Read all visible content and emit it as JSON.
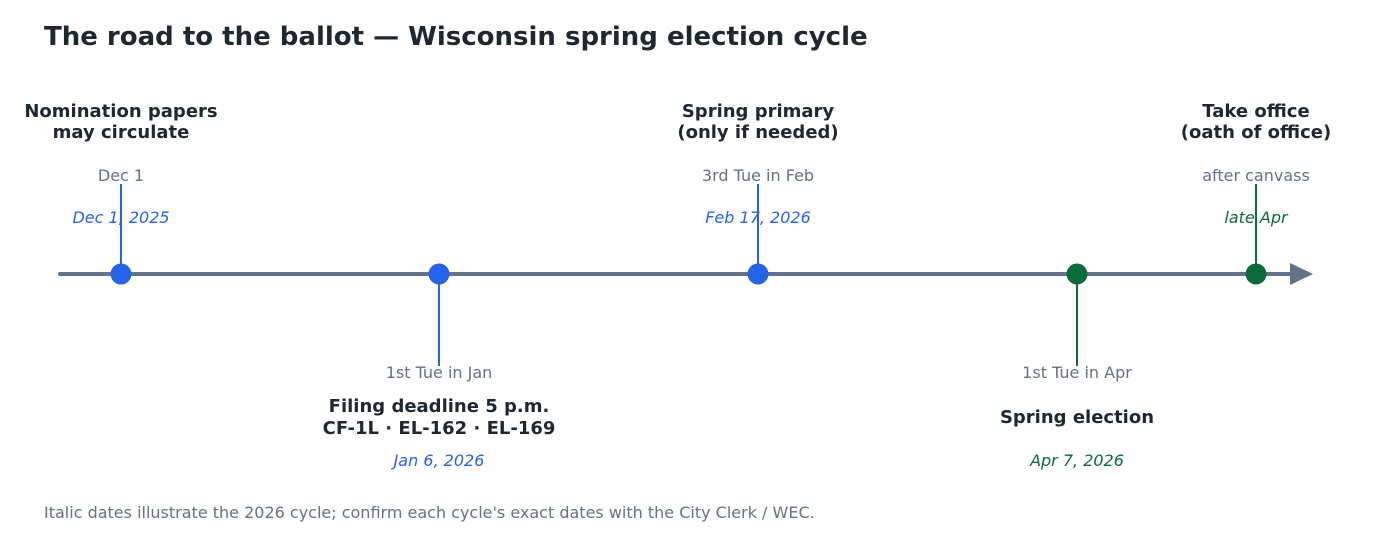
{
  "title": "The road to the ballot — Wisconsin spring election cycle",
  "footnote": "Italic dates illustrate the 2026 cycle; confirm each cycle's exact dates with the City Clerk / WEC.",
  "colors": {
    "blue": "#2563eb",
    "green": "#0b6b3a",
    "axis": "#64718a",
    "label": "#1f2733",
    "muted": "#64718a"
  },
  "milestones": [
    {
      "id": "nomination",
      "position": "above",
      "color": "blue",
      "label_lines": [
        "Nomination papers",
        "may circulate"
      ],
      "rule": "Dec 1",
      "date": "Dec 1, 2025"
    },
    {
      "id": "filing",
      "position": "below",
      "color": "blue",
      "label_lines": [
        "Filing deadline 5 p.m.",
        "CF-1L · EL-162 · EL-169"
      ],
      "rule": "1st Tue in Jan",
      "date": "Jan 6, 2026"
    },
    {
      "id": "primary",
      "position": "above",
      "color": "blue",
      "label_lines": [
        "Spring primary",
        "(only if needed)"
      ],
      "rule": "3rd Tue in Feb",
      "date": "Feb 17, 2026"
    },
    {
      "id": "election",
      "position": "below",
      "color": "green",
      "label_lines": [
        "Spring election"
      ],
      "rule": "1st Tue in Apr",
      "date": "Apr 7, 2026"
    },
    {
      "id": "office",
      "position": "above",
      "color": "green",
      "label_lines": [
        "Take office",
        "(oath of office)"
      ],
      "rule": "after canvass",
      "date": "late Apr"
    }
  ]
}
